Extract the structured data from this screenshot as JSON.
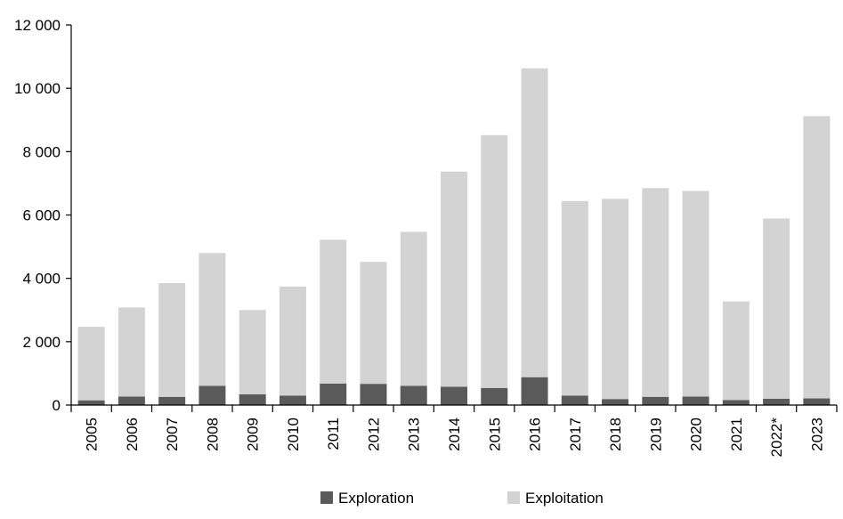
{
  "chart_data": {
    "type": "bar",
    "stacked": true,
    "categories": [
      "2005",
      "2006",
      "2007",
      "2008",
      "2009",
      "2010",
      "2011",
      "2012",
      "2013",
      "2014",
      "2015",
      "2016",
      "2017",
      "2018",
      "2019",
      "2020",
      "2021",
      "2022*",
      "2023"
    ],
    "series": [
      {
        "name": "Exploration",
        "color": "#5a5a5a",
        "values": [
          150,
          270,
          260,
          610,
          340,
          300,
          680,
          670,
          610,
          580,
          540,
          880,
          300,
          190,
          260,
          270,
          160,
          200,
          210
        ]
      },
      {
        "name": "Exploitation",
        "color": "#d3d3d3",
        "values": [
          2320,
          2810,
          3590,
          4190,
          2660,
          3440,
          4540,
          3850,
          4860,
          6790,
          7980,
          9750,
          6140,
          6320,
          6590,
          6490,
          3110,
          5690,
          8910
        ]
      }
    ],
    "ylim": [
      0,
      12000
    ],
    "yticks": [
      0,
      2000,
      4000,
      6000,
      8000,
      10000,
      12000
    ],
    "ytick_labels": [
      "0",
      "2 000",
      "4 000",
      "6 000",
      "8 000",
      "10 000",
      "12 000"
    ],
    "grid": false,
    "legend_position": "bottom",
    "title": "",
    "xlabel": "",
    "ylabel": ""
  }
}
